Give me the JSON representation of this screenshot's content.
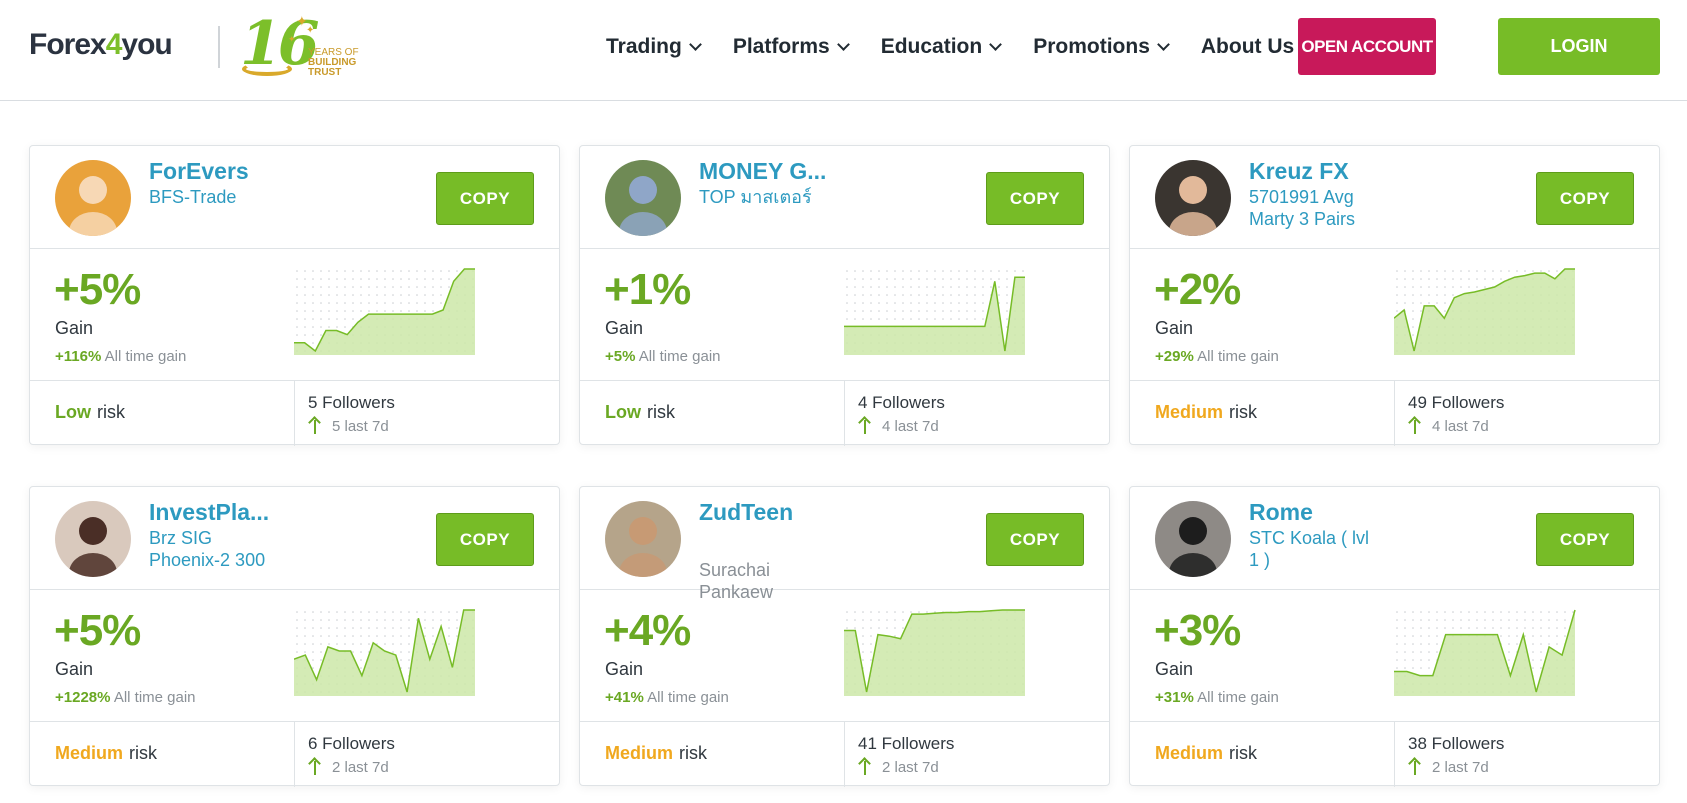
{
  "header": {
    "logo_main": "Forex",
    "logo_four": "4",
    "logo_end": "you",
    "badge_number": "16",
    "badge_years": "YEARS OF",
    "badge_building": "BUILDING",
    "badge_trust": "TRUST",
    "nav": [
      "Trading",
      "Platforms",
      "Education",
      "Promotions",
      "About Us"
    ],
    "open_account": "OPEN ACCOUNT",
    "login": "LOGIN"
  },
  "colors": {
    "brand_green": "#77bc27",
    "brand_pink": "#c8195a",
    "link_blue": "#2d9ac0",
    "risk_low": "#6aa823",
    "risk_medium": "#f0a81e"
  },
  "cards": [
    {
      "name": "ForEvers",
      "strategy_line1": "BFS-Trade",
      "strategy_line2": "",
      "strategy_grey": false,
      "copy": "COPY",
      "gain": "+5%",
      "gain_label": "Gain",
      "alltime_value": "+116%",
      "alltime_label": "All time gain",
      "risk_level": "Low",
      "risk_kind": "low",
      "risk_word": "risk",
      "followers": "5 Followers",
      "last7": "5 last 7d",
      "spark": [
        0.1,
        0.1,
        0.0,
        0.25,
        0.25,
        0.2,
        0.35,
        0.45,
        0.45,
        0.45,
        0.45,
        0.45,
        0.45,
        0.45,
        0.5,
        0.85,
        1.0,
        1.0
      ],
      "avatar_bg": "#e9a23b",
      "avatar_fg": "#f7d8b5"
    },
    {
      "name": "MONEY G...",
      "strategy_line1": "TOP มาสเตอร์",
      "strategy_line2": "",
      "strategy_grey": false,
      "copy": "COPY",
      "gain": "+1%",
      "gain_label": "Gain",
      "alltime_value": "+5%",
      "alltime_label": "All time gain",
      "risk_level": "Low",
      "risk_kind": "low",
      "risk_word": "risk",
      "followers": "4 Followers",
      "last7": "4 last 7d",
      "spark": [
        0.3,
        0.3,
        0.3,
        0.3,
        0.3,
        0.3,
        0.3,
        0.3,
        0.3,
        0.3,
        0.3,
        0.3,
        0.3,
        0.3,
        0.3,
        0.85,
        0.0,
        0.9,
        0.9
      ],
      "avatar_bg": "#6f8a55",
      "avatar_fg": "#8fa6c8"
    },
    {
      "name": "Kreuz FX",
      "strategy_line1": "5701991 Avg",
      "strategy_line2": "Marty 3 Pairs",
      "strategy_grey": false,
      "copy": "COPY",
      "gain": "+2%",
      "gain_label": "Gain",
      "alltime_value": "+29%",
      "alltime_label": "All time gain",
      "risk_level": "Medium",
      "risk_kind": "medium",
      "risk_word": "risk",
      "followers": "49 Followers",
      "last7": "4 last 7d",
      "spark": [
        0.4,
        0.5,
        0.0,
        0.55,
        0.55,
        0.4,
        0.65,
        0.7,
        0.72,
        0.75,
        0.78,
        0.85,
        0.9,
        0.92,
        0.95,
        0.95,
        0.88,
        1.0,
        1.0
      ],
      "avatar_bg": "#3a3530",
      "avatar_fg": "#e2b99a"
    },
    {
      "name": "InvestPla...",
      "strategy_line1": "Brz SIG",
      "strategy_line2": "Phoenix-2 300",
      "strategy_grey": false,
      "copy": "COPY",
      "gain": "+5%",
      "gain_label": "Gain",
      "alltime_value": "+1228%",
      "alltime_label": "All time gain",
      "risk_level": "Medium",
      "risk_kind": "medium",
      "risk_word": "risk",
      "followers": "6 Followers",
      "last7": "2 last 7d",
      "spark": [
        0.4,
        0.45,
        0.15,
        0.55,
        0.5,
        0.5,
        0.2,
        0.6,
        0.5,
        0.45,
        0.0,
        0.9,
        0.4,
        0.8,
        0.3,
        1.0,
        1.0
      ],
      "avatar_bg": "#d9c9bd",
      "avatar_fg": "#4a2e26"
    },
    {
      "name": "ZudTeen",
      "strategy_line1": "Surachai",
      "strategy_line2": "Pankaew",
      "strategy_grey": true,
      "copy": "COPY",
      "gain": "+4%",
      "gain_label": "Gain",
      "alltime_value": "+41%",
      "alltime_label": "All time gain",
      "risk_level": "Medium",
      "risk_kind": "medium",
      "risk_word": "risk",
      "followers": "41 Followers",
      "last7": "2 last 7d",
      "spark": [
        0.75,
        0.75,
        0.0,
        0.7,
        0.68,
        0.65,
        0.95,
        0.95,
        0.96,
        0.97,
        0.97,
        0.98,
        0.98,
        0.99,
        1.0,
        1.0,
        1.0
      ],
      "avatar_bg": "#b5a48a",
      "avatar_fg": "#c79a74"
    },
    {
      "name": "Rome",
      "strategy_line1": "STC Koala ( lvl",
      "strategy_line2": "1 )",
      "strategy_grey": false,
      "copy": "COPY",
      "gain": "+3%",
      "gain_label": "Gain",
      "alltime_value": "+31%",
      "alltime_label": "All time gain",
      "risk_level": "Medium",
      "risk_kind": "medium",
      "risk_word": "risk",
      "followers": "38 Followers",
      "last7": "2 last 7d",
      "spark": [
        0.25,
        0.25,
        0.2,
        0.2,
        0.7,
        0.7,
        0.7,
        0.7,
        0.7,
        0.2,
        0.7,
        0.0,
        0.55,
        0.45,
        1.0
      ],
      "avatar_bg": "#8e8a86",
      "avatar_fg": "#1d1d1d"
    }
  ]
}
